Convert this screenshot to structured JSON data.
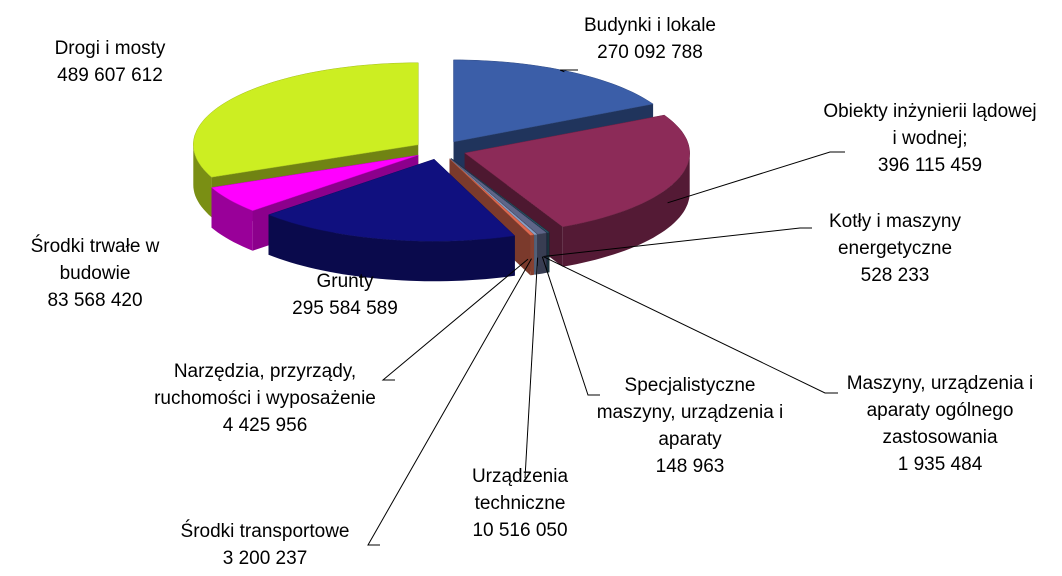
{
  "chart_data": {
    "type": "pie",
    "categories": [
      "Budynki i lokale",
      "Obiekty inżynierii lądowej i wodnej;",
      "Kotły i maszyny energetyczne",
      "Maszyny, urządzenia i aparaty ogólnego zastosowania",
      "Specjalistyczne maszyny, urządzenia i aparaty",
      "Urządzenia techniczne",
      "Środki transportowe",
      "Narzędzia, przyrządy, ruchomości i wyposażenie",
      "Grunty",
      "Środki trwałe w budowie",
      "Drogi i mosty"
    ],
    "values": [
      270092788,
      396115459,
      528233,
      1935484,
      148963,
      10516050,
      3200237,
      4425956,
      295584589,
      83568420,
      489607612
    ],
    "value_labels": [
      "270 092 788",
      "396 115 459",
      "528 233",
      "1 935 484",
      "148 963",
      "10 516 050",
      "3 200 237",
      "4 425 956",
      "295 584 589",
      "83 568 420",
      "489 607 612"
    ],
    "colors": [
      "#3b5ea8",
      "#8c2b58",
      "#24404a",
      "#2e5a6a",
      "#20305a",
      "#5e6588",
      "#8aa0c8",
      "#e06a50",
      "#10107f",
      "#ff00ff",
      "#ccee22"
    ]
  }
}
